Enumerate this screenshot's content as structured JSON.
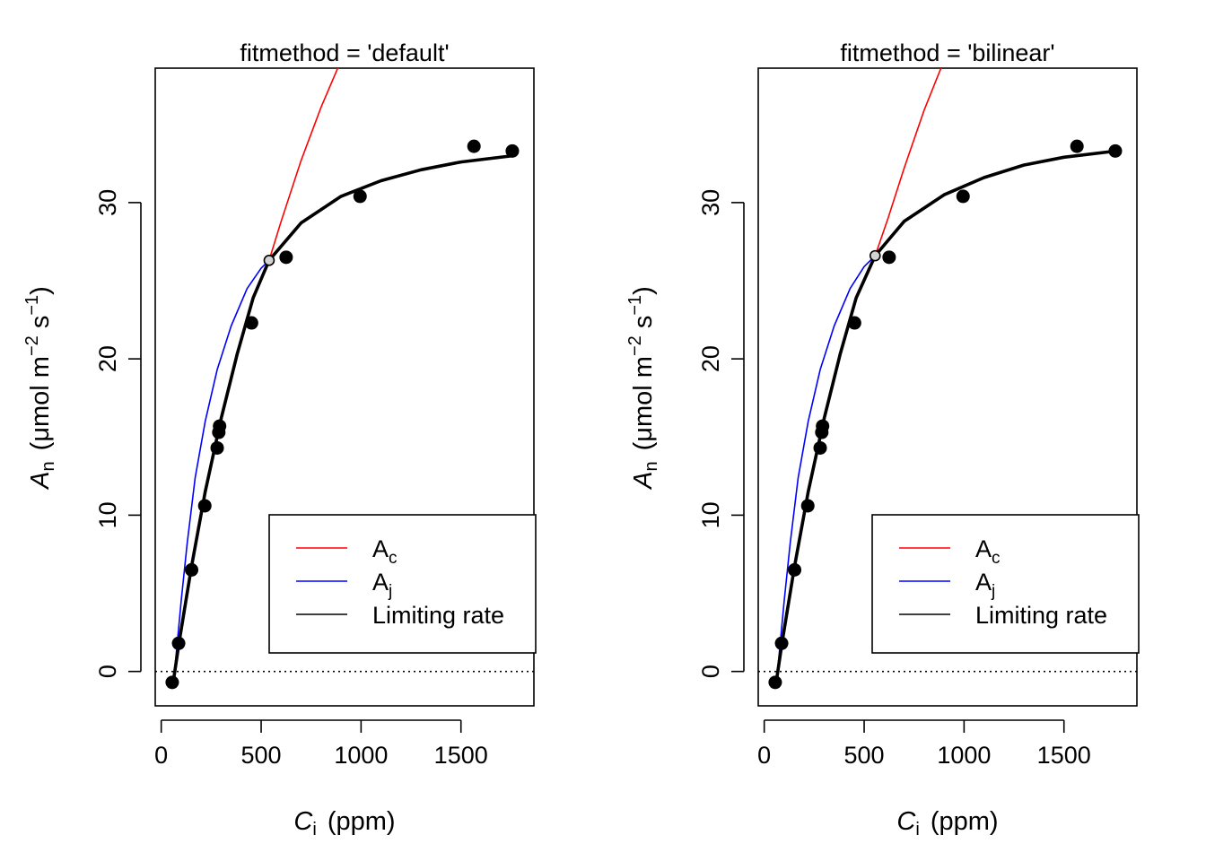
{
  "chart_data": [
    {
      "type": "line",
      "title": "fitmethod = 'default'",
      "xlabel": {
        "symbol": "C",
        "sub": "i",
        "unit": "(ppm)"
      },
      "ylabel": {
        "symbol": "A",
        "sub": "n",
        "unit_prefix": "(μmol m",
        "exp1": "−2",
        "unit_mid": " s",
        "exp2": "−1",
        "unit_suffix": ")"
      },
      "xlim": [
        -30,
        1865
      ],
      "ylim": [
        -2.2,
        38.6
      ],
      "xticks": [
        0,
        500,
        1000,
        1500
      ],
      "xtick_labels": [
        "0",
        "500",
        "1000",
        "1500"
      ],
      "yticks": [
        0,
        10,
        20,
        30
      ],
      "ytick_labels": [
        "0",
        "10",
        "20",
        "30"
      ],
      "zero_line": true,
      "grid": false,
      "legend_position": "bottom-right",
      "legend": [
        {
          "label": "A",
          "sub": "c",
          "color": "#ff0000"
        },
        {
          "label": "A",
          "sub": "j",
          "color": "#0000ff"
        },
        {
          "label": "Limiting rate",
          "sub": "",
          "color": "#000000"
        }
      ],
      "series": [
        {
          "name": "Ac",
          "color": "#ff0000",
          "x": [
            60,
            90,
            150,
            220,
            300,
            380,
            460,
            540,
            600,
            700,
            800,
            900
          ],
          "y": [
            -0.7,
            1.9,
            6.6,
            11.5,
            16.2,
            20.3,
            23.9,
            26.3,
            28.8,
            32.7,
            36.1,
            39.1
          ]
        },
        {
          "name": "Aj",
          "color": "#0000ff",
          "x": [
            60,
            70,
            80,
            100,
            130,
            170,
            220,
            280,
            350,
            430,
            500,
            540
          ],
          "y": [
            -0.7,
            0.5,
            1.8,
            4.5,
            8.2,
            12.4,
            16.0,
            19.3,
            22.1,
            24.5,
            25.8,
            26.3
          ]
        },
        {
          "name": "Limiting rate",
          "color": "#000000",
          "x": [
            60,
            90,
            150,
            220,
            300,
            380,
            460,
            540,
            700,
            900,
            1100,
            1300,
            1500,
            1760
          ],
          "y": [
            -0.7,
            1.9,
            6.6,
            11.5,
            16.2,
            20.3,
            23.9,
            26.3,
            28.7,
            30.4,
            31.4,
            32.1,
            32.6,
            33.0
          ]
        }
      ],
      "points": {
        "x": [
          55,
          87,
          152,
          218,
          280,
          288,
          292,
          452,
          625,
          995,
          1565,
          1757
        ],
        "y": [
          -0.7,
          1.8,
          6.5,
          10.6,
          14.3,
          15.3,
          15.7,
          22.3,
          26.5,
          30.4,
          33.6,
          33.3
        ]
      },
      "transition": {
        "x": 540,
        "y": 26.3
      }
    },
    {
      "type": "line",
      "title": "fitmethod = 'bilinear'",
      "xlabel": {
        "symbol": "C",
        "sub": "i",
        "unit": "(ppm)"
      },
      "ylabel": {
        "symbol": "A",
        "sub": "n",
        "unit_prefix": "(μmol m",
        "exp1": "−2",
        "unit_mid": " s",
        "exp2": "−1",
        "unit_suffix": ")"
      },
      "xlim": [
        -30,
        1865
      ],
      "ylim": [
        -2.2,
        38.6
      ],
      "xticks": [
        0,
        500,
        1000,
        1500
      ],
      "xtick_labels": [
        "0",
        "500",
        "1000",
        "1500"
      ],
      "yticks": [
        0,
        10,
        20,
        30
      ],
      "ytick_labels": [
        "0",
        "10",
        "20",
        "30"
      ],
      "zero_line": true,
      "grid": false,
      "legend_position": "bottom-right",
      "legend": [
        {
          "label": "A",
          "sub": "c",
          "color": "#ff0000"
        },
        {
          "label": "A",
          "sub": "j",
          "color": "#0000ff"
        },
        {
          "label": "Limiting rate",
          "sub": "",
          "color": "#000000"
        }
      ],
      "series": [
        {
          "name": "Ac",
          "color": "#ff0000",
          "x": [
            60,
            90,
            150,
            220,
            300,
            380,
            460,
            555,
            620,
            700,
            800,
            900
          ],
          "y": [
            -0.7,
            1.9,
            6.6,
            11.5,
            16.2,
            20.3,
            23.9,
            26.6,
            29.0,
            32.2,
            35.9,
            39.1
          ]
        },
        {
          "name": "Aj",
          "color": "#0000ff",
          "x": [
            60,
            70,
            80,
            100,
            130,
            170,
            220,
            280,
            350,
            430,
            500,
            555
          ],
          "y": [
            -0.7,
            0.5,
            1.8,
            4.5,
            8.2,
            12.4,
            16.0,
            19.3,
            22.1,
            24.5,
            25.9,
            26.6
          ]
        },
        {
          "name": "Limiting rate",
          "color": "#000000",
          "x": [
            60,
            90,
            150,
            220,
            300,
            380,
            460,
            555,
            700,
            900,
            1100,
            1300,
            1500,
            1760
          ],
          "y": [
            -0.7,
            1.9,
            6.6,
            11.5,
            16.2,
            20.3,
            23.9,
            26.6,
            28.8,
            30.5,
            31.6,
            32.4,
            32.9,
            33.3
          ]
        }
      ],
      "points": {
        "x": [
          55,
          87,
          152,
          218,
          280,
          288,
          292,
          452,
          625,
          995,
          1565,
          1757
        ],
        "y": [
          -0.7,
          1.8,
          6.5,
          10.6,
          14.3,
          15.3,
          15.7,
          22.3,
          26.5,
          30.4,
          33.6,
          33.3
        ]
      },
      "transition": {
        "x": 555,
        "y": 26.6
      }
    }
  ]
}
